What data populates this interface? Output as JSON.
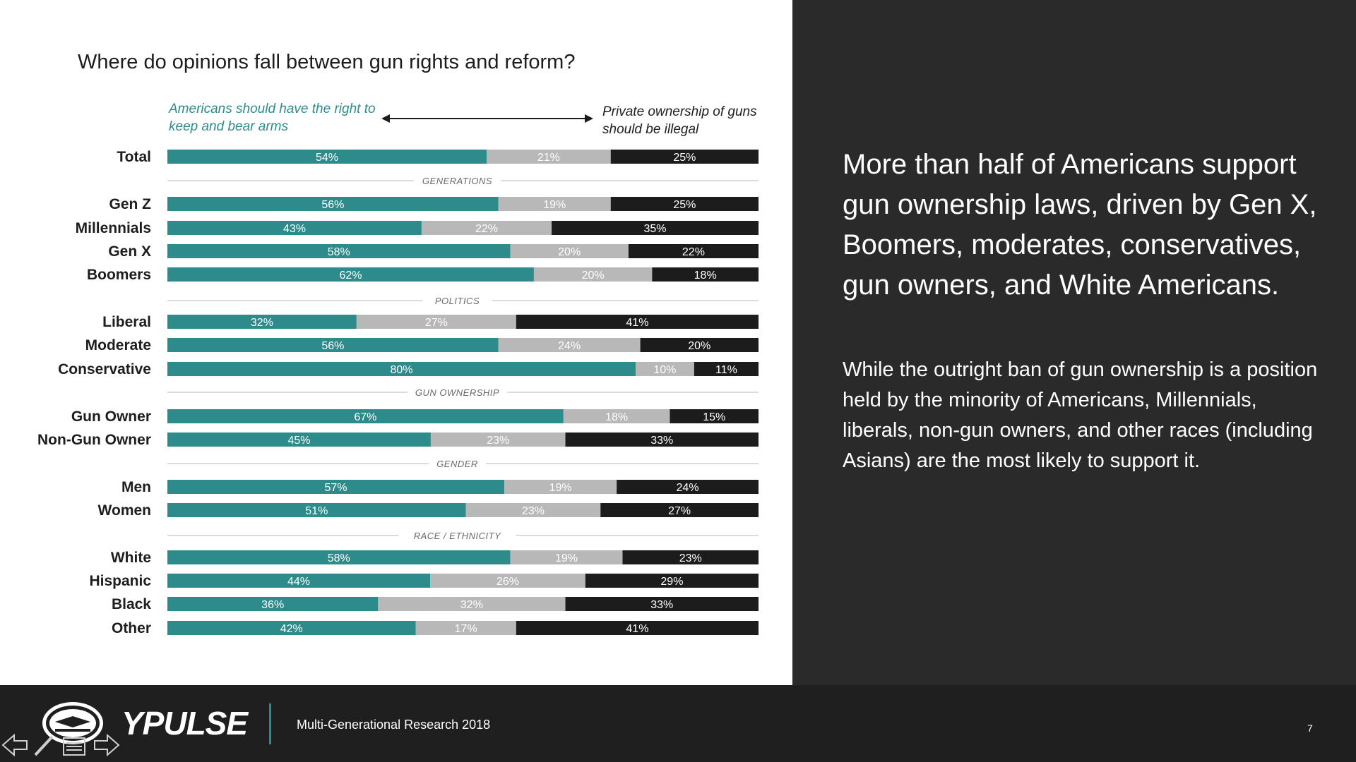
{
  "slide": {
    "title": "Where do opinions fall between gun rights and reform?",
    "legend_left": "Americans should have the right to keep and bear arms",
    "legend_right": "Private ownership of guns should be illegal"
  },
  "colors": {
    "teal": "#2e8b8b",
    "gray": "#b8b8b8",
    "black": "#1c1c1c",
    "divider": "#d0d0d0"
  },
  "chart_data": {
    "type": "bar",
    "orientation": "horizontal",
    "stacked": true,
    "series": [
      {
        "name": "Americans should have the right to keep and bear arms",
        "color": "#2e8b8b"
      },
      {
        "name": "",
        "color": "#b8b8b8"
      },
      {
        "name": "Private ownership of guns should be illegal",
        "color": "#1c1c1c"
      }
    ],
    "rows": [
      {
        "label": "Total",
        "values": [
          54,
          21,
          25
        ],
        "labels": [
          "54%",
          "21%",
          "25%"
        ]
      },
      {
        "group": "GENERATIONS"
      },
      {
        "label": "Gen Z",
        "values": [
          56,
          19,
          25
        ],
        "labels": [
          "56%",
          "19%",
          "25%"
        ]
      },
      {
        "label": "Millennials",
        "values": [
          43,
          22,
          35
        ],
        "labels": [
          "43%",
          "22%",
          "35%"
        ]
      },
      {
        "label": "Gen X",
        "values": [
          58,
          20,
          22
        ],
        "labels": [
          "58%",
          "20%",
          "22%"
        ]
      },
      {
        "label": "Boomers",
        "values": [
          62,
          20,
          18
        ],
        "labels": [
          "62%",
          "20%",
          "18%"
        ]
      },
      {
        "group": "POLITICS"
      },
      {
        "label": "Liberal",
        "values": [
          32,
          27,
          41
        ],
        "labels": [
          "32%",
          "27%",
          "41%"
        ]
      },
      {
        "label": "Moderate",
        "values": [
          56,
          24,
          20
        ],
        "labels": [
          "56%",
          "24%",
          "20%"
        ]
      },
      {
        "label": "Conservative",
        "values": [
          80,
          10,
          11
        ],
        "labels": [
          "80%",
          "10%",
          "11%"
        ]
      },
      {
        "group": "GUN OWNERSHIP"
      },
      {
        "label": "Gun Owner",
        "values": [
          67,
          18,
          15
        ],
        "labels": [
          "67%",
          "18%",
          "15%"
        ]
      },
      {
        "label": "Non-Gun Owner",
        "values": [
          45,
          23,
          33
        ],
        "labels": [
          "45%",
          "23%",
          "33%"
        ]
      },
      {
        "group": "GENDER"
      },
      {
        "label": "Men",
        "values": [
          57,
          19,
          24
        ],
        "labels": [
          "57%",
          "19%",
          "24%"
        ]
      },
      {
        "label": "Women",
        "values": [
          51,
          23,
          27
        ],
        "labels": [
          "51%",
          "23%",
          "27%"
        ]
      },
      {
        "group": "RACE / ETHNICITY"
      },
      {
        "label": "White",
        "values": [
          58,
          19,
          23
        ],
        "labels": [
          "58%",
          "19%",
          "23%"
        ]
      },
      {
        "label": "Hispanic",
        "values": [
          44,
          26,
          29
        ],
        "labels": [
          "44%",
          "26%",
          "29%"
        ]
      },
      {
        "label": "Black",
        "values": [
          36,
          32,
          33
        ],
        "labels": [
          "36%",
          "32%",
          "33%"
        ]
      },
      {
        "label": "Other",
        "values": [
          42,
          17,
          41
        ],
        "labels": [
          "42%",
          "17%",
          "41%"
        ]
      }
    ]
  },
  "right_panel": {
    "headline": "More than half of Americans support gun ownership laws, driven by Gen X, Boomers, moderates, conservatives, gun owners, and White Americans.",
    "body": "While the outright ban of gun ownership is a position held by the minority of Americans, Millennials, liberals, non-gun owners, and other races (including Asians) are the most likely to support it."
  },
  "footer": {
    "logo_nssf": "National Shooting Sports Foundation",
    "logo_ypulse": "YPULSE",
    "report": "Multi-Generational Research 2018",
    "page": "7"
  },
  "icons": [
    "back-arrow-icon",
    "pen-icon",
    "menu-icon",
    "forward-arrow-icon"
  ]
}
